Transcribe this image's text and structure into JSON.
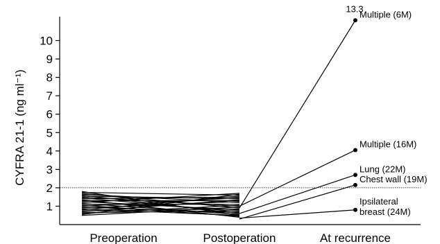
{
  "chart_data": {
    "type": "line",
    "categories": [
      "Preoperation",
      "Postoperation",
      "At recurrence"
    ],
    "ylabel": "CYFRA 21-1 (ng ml⁻¹)",
    "ylim": [
      0,
      11.3
    ],
    "yticks": [
      1,
      2,
      3,
      4,
      5,
      6,
      7,
      8,
      9,
      10
    ],
    "reference_line": 2,
    "paired_lines": [
      [
        1.8,
        0.5
      ],
      [
        1.75,
        1.6
      ],
      [
        1.7,
        0.9
      ],
      [
        1.65,
        1.2
      ],
      [
        1.6,
        0.6
      ],
      [
        1.55,
        1.4
      ],
      [
        1.5,
        1.0
      ],
      [
        1.45,
        0.7
      ],
      [
        1.4,
        1.5
      ],
      [
        1.35,
        0.4
      ],
      [
        1.3,
        1.3
      ],
      [
        1.25,
        0.8
      ],
      [
        1.2,
        1.7
      ],
      [
        1.15,
        0.55
      ],
      [
        1.1,
        1.1
      ],
      [
        1.05,
        0.45
      ],
      [
        1.0,
        1.45
      ],
      [
        0.95,
        0.65
      ],
      [
        0.9,
        1.25
      ],
      [
        0.85,
        0.5
      ],
      [
        0.8,
        1.55
      ],
      [
        0.75,
        0.85
      ],
      [
        0.7,
        1.35
      ],
      [
        0.65,
        0.75
      ],
      [
        0.6,
        1.05
      ],
      [
        0.55,
        1.65
      ],
      [
        0.5,
        0.95
      ]
    ],
    "recurrence_series": [
      {
        "label": "Multiple (6M)",
        "post": 0.9,
        "recur": 11.1,
        "value_label": "13.3"
      },
      {
        "label": "Multiple (16M)",
        "post": 1.0,
        "recur": 4.05,
        "value_label": ""
      },
      {
        "label": "Lung (22M)",
        "post": 0.6,
        "recur": 2.7,
        "value_label": ""
      },
      {
        "label": "Chest wall (19M)",
        "post": 0.3,
        "recur": 2.15,
        "value_label": ""
      },
      {
        "label": "Ipsilateral\nbreast (24M)",
        "post": 0.35,
        "recur": 0.8,
        "value_label": ""
      }
    ]
  }
}
